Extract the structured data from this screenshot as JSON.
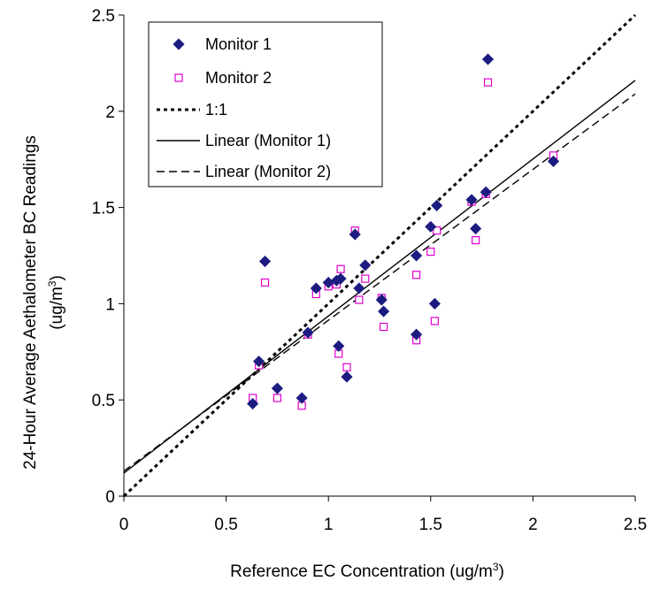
{
  "chart_data": {
    "type": "scatter",
    "xlabel": "Reference EC Concentration (ug/m",
    "xlabel_sup": "3",
    "xlabel_end": ")",
    "ylabel_line1": "24-Hour Average Aethalometer BC Readings",
    "ylabel_line2": "(ug/m",
    "ylabel_sup": "3",
    "ylabel_end": ")",
    "xlim": [
      0,
      2.5
    ],
    "ylim": [
      0,
      2.5
    ],
    "x_ticks": [
      "0",
      "0.5",
      "1",
      "1.5",
      "2",
      "2.5"
    ],
    "y_ticks": [
      "0",
      "0.5",
      "1",
      "1.5",
      "2",
      "2.5"
    ],
    "grid": false,
    "legend_position": "top-left",
    "series": [
      {
        "name": "Monitor 1",
        "marker": "diamond",
        "color": "#1c1c80",
        "points": [
          [
            0.63,
            0.48
          ],
          [
            0.66,
            0.7
          ],
          [
            0.69,
            1.22
          ],
          [
            0.75,
            0.56
          ],
          [
            0.87,
            0.51
          ],
          [
            0.9,
            0.85
          ],
          [
            0.94,
            1.08
          ],
          [
            1.0,
            1.11
          ],
          [
            1.04,
            1.12
          ],
          [
            1.05,
            0.78
          ],
          [
            1.06,
            1.13
          ],
          [
            1.09,
            0.62
          ],
          [
            1.13,
            1.36
          ],
          [
            1.15,
            1.08
          ],
          [
            1.18,
            1.2
          ],
          [
            1.26,
            1.02
          ],
          [
            1.27,
            0.96
          ],
          [
            1.43,
            1.25
          ],
          [
            1.43,
            0.84
          ],
          [
            1.5,
            1.4
          ],
          [
            1.52,
            1.0
          ],
          [
            1.53,
            1.51
          ],
          [
            1.7,
            1.54
          ],
          [
            1.72,
            1.39
          ],
          [
            1.77,
            1.58
          ],
          [
            1.78,
            2.27
          ],
          [
            2.1,
            1.74
          ]
        ]
      },
      {
        "name": "Monitor 2",
        "marker": "square",
        "color": "#dd00cc",
        "points": [
          [
            0.63,
            0.51
          ],
          [
            0.66,
            0.68
          ],
          [
            0.69,
            1.11
          ],
          [
            0.75,
            0.51
          ],
          [
            0.87,
            0.47
          ],
          [
            0.9,
            0.84
          ],
          [
            0.94,
            1.05
          ],
          [
            1.0,
            1.09
          ],
          [
            1.04,
            1.1
          ],
          [
            1.05,
            0.74
          ],
          [
            1.06,
            1.18
          ],
          [
            1.09,
            0.67
          ],
          [
            1.13,
            1.38
          ],
          [
            1.15,
            1.02
          ],
          [
            1.18,
            1.13
          ],
          [
            1.26,
            1.03
          ],
          [
            1.27,
            0.88
          ],
          [
            1.43,
            1.15
          ],
          [
            1.43,
            0.81
          ],
          [
            1.5,
            1.27
          ],
          [
            1.52,
            0.91
          ],
          [
            1.53,
            1.38
          ],
          [
            1.7,
            1.53
          ],
          [
            1.72,
            1.33
          ],
          [
            1.77,
            1.57
          ],
          [
            1.78,
            2.15
          ],
          [
            2.1,
            1.77
          ]
        ]
      },
      {
        "name": "1:1",
        "line": "dotted",
        "color": "#000000",
        "from": [
          0,
          0
        ],
        "to": [
          2.5,
          2.5
        ]
      },
      {
        "name": "Linear (Monitor 1)",
        "line": "solid",
        "color": "#000000",
        "from": [
          0,
          0.12
        ],
        "to": [
          2.5,
          2.16
        ]
      },
      {
        "name": "Linear (Monitor 2)",
        "line": "dashed",
        "color": "#000000",
        "from": [
          0,
          0.13
        ],
        "to": [
          2.5,
          2.09
        ]
      }
    ]
  }
}
